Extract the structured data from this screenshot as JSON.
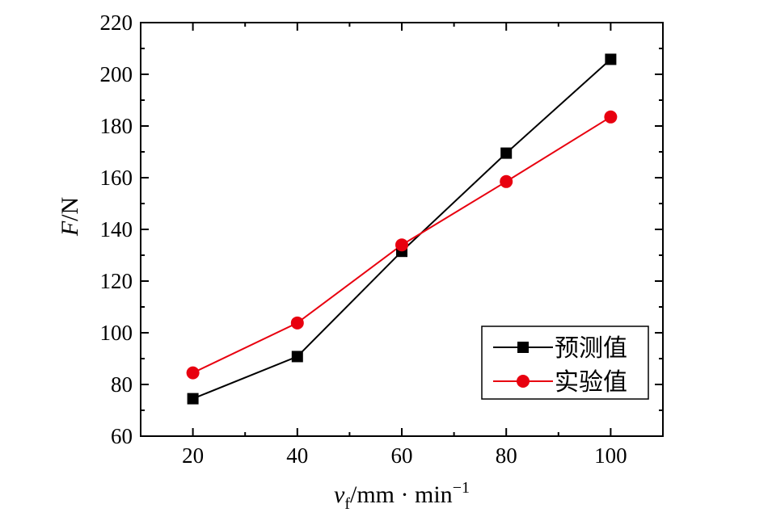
{
  "chart_data": {
    "type": "line",
    "x": [
      20,
      40,
      60,
      80,
      100
    ],
    "series": [
      {
        "name": "预测值",
        "values": [
          74.5,
          90.8,
          131.5,
          169.5,
          205.8
        ],
        "color": "#000000",
        "marker": "square"
      },
      {
        "name": "实验值",
        "values": [
          84.5,
          103.8,
          134,
          158.5,
          183.5
        ],
        "color": "#e8000f",
        "marker": "circle"
      }
    ],
    "xlim": [
      10,
      110
    ],
    "ylim": [
      60,
      220
    ],
    "xticks": [
      "20",
      "40",
      "60",
      "80",
      "100"
    ],
    "yticks": [
      "60",
      "80",
      "100",
      "120",
      "140",
      "160",
      "180",
      "200",
      "220"
    ],
    "ylabel": {
      "var": "F",
      "unit": "/N"
    },
    "xlabel": {
      "var": "v",
      "sub": "f",
      "unit": "/mm · min",
      "sup": "−1"
    },
    "grid": false,
    "legend_position": "bottom-right"
  }
}
